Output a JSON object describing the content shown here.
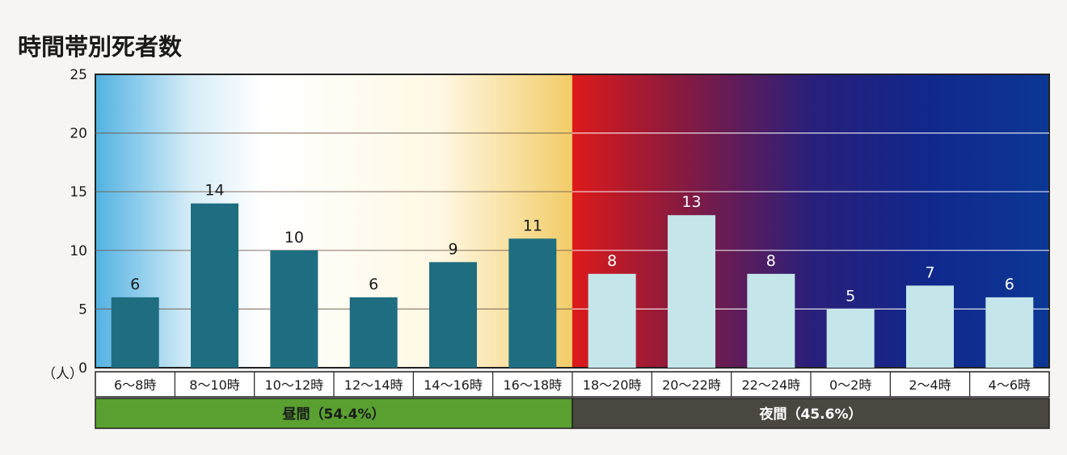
{
  "chart_data": {
    "type": "bar",
    "title": "時間帯別死者数",
    "ylabel": "",
    "ylim": [
      0,
      25
    ],
    "yticks": [
      0,
      5,
      10,
      15,
      20,
      25
    ],
    "yunit": "（人）",
    "categories": [
      "6～8時",
      "8～10時",
      "10～12時",
      "12～14時",
      "14～16時",
      "16～18時",
      "18～20時",
      "20～22時",
      "22～24時",
      "0～2時",
      "2～4時",
      "4～6時"
    ],
    "values": [
      6,
      14,
      10,
      6,
      9,
      11,
      8,
      13,
      8,
      5,
      7,
      6
    ],
    "grid": true,
    "groups": [
      {
        "label": "昼間（54.4%）",
        "start": 0,
        "end": 5,
        "color": "#59a030",
        "bar_color": "#1f6d80"
      },
      {
        "label": "夜間（45.6%）",
        "start": 6,
        "end": 11,
        "color": "#4a4640",
        "bar_color": "#c4e6ea"
      }
    ]
  }
}
